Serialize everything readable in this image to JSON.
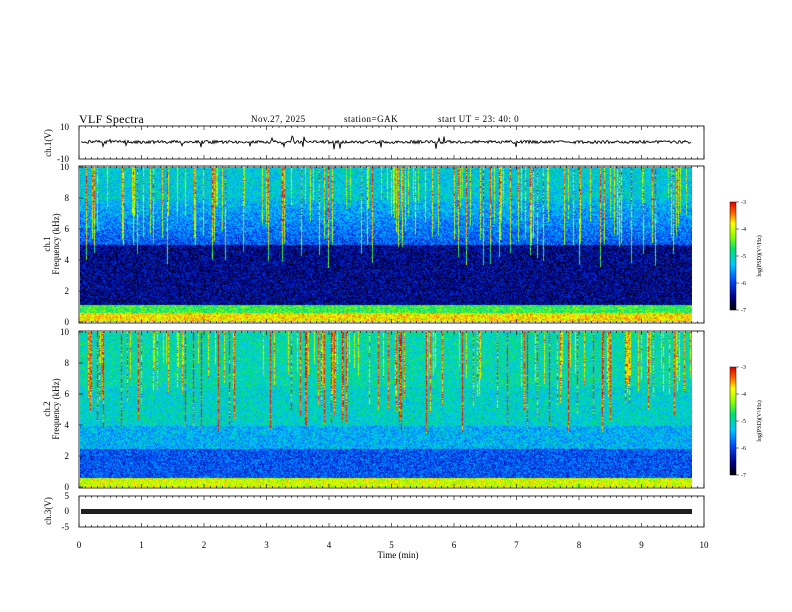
{
  "header": {
    "title": "VLF  Spectra",
    "date": "Nov.27, 2025",
    "station": "station=GAK",
    "start": "start  UT  =    23: 40: 0"
  },
  "chart_data": [
    {
      "type": "line",
      "title": "",
      "ylabel": "ch.1(V)",
      "ylim": [
        -10,
        10
      ],
      "yticks": [
        "10",
        "-10"
      ],
      "xlim": [
        0,
        10
      ],
      "description_level": 0
    },
    {
      "type": "heatmap",
      "ylabel": "ch.1\nFrequency  (kHz)",
      "ylabel_lines": [
        "ch.1",
        "Frequency  (kHz)"
      ],
      "ylim": [
        0,
        10
      ],
      "yticks": [
        "0",
        "2",
        "4",
        "6",
        "8",
        "10"
      ],
      "xlim": [
        0,
        10
      ],
      "colorbar": {
        "label": "log(PSD)(V²/Hz)",
        "range": [
          -7,
          -3
        ],
        "ticks": [
          "-3",
          "-4",
          "-5",
          "-6",
          "-7"
        ]
      }
    },
    {
      "type": "heatmap",
      "ylabel_lines": [
        "ch.2",
        "Frequency  (kHz)"
      ],
      "ylim": [
        0,
        10
      ],
      "yticks": [
        "0",
        "2",
        "4",
        "6",
        "8",
        "10"
      ],
      "xlim": [
        0,
        10
      ],
      "colorbar": {
        "label": "log(PSD)(V²/Hz)",
        "range": [
          -7,
          -3
        ],
        "ticks": [
          "-3",
          "-4",
          "-5",
          "-6",
          "-7"
        ]
      }
    },
    {
      "type": "line",
      "ylabel": "ch.3(V)",
      "ylim": [
        -5,
        5
      ],
      "yticks": [
        "5",
        "0",
        "-5"
      ],
      "xlim": [
        0,
        10
      ]
    }
  ],
  "xaxis": {
    "label": "Time  (min)",
    "ticks": [
      "0",
      "1",
      "2",
      "3",
      "4",
      "5",
      "6",
      "7",
      "8",
      "9",
      "10"
    ]
  }
}
